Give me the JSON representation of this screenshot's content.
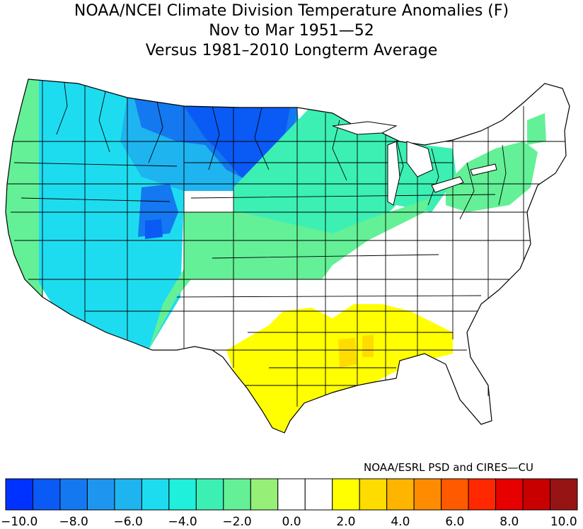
{
  "title": {
    "line1": "NOAA/NCEI Climate Division Temperature Anomalies (F)",
    "line2": "Nov to Mar 1951—52",
    "line3": "Versus 1981–2010 Longterm Average"
  },
  "credit": "NOAA/ESRL PSD and CIRES—CU",
  "colors": {
    "cold_strong": "#0028f0",
    "cold_mid": "#1e9bf5",
    "cold_light": "#1ef0e6",
    "cool_green": "#5aef96",
    "near_zero": "#ffffff",
    "warm_light": "#ffff00",
    "warm_orange": "#ffc800",
    "state_line": "#000000"
  },
  "colorbar": {
    "bins": [
      {
        "color": "#0032ff"
      },
      {
        "color": "#0a5af5"
      },
      {
        "color": "#1478f0"
      },
      {
        "color": "#1e96f0"
      },
      {
        "color": "#1eb4f0"
      },
      {
        "color": "#1edcf0"
      },
      {
        "color": "#1ef0dc"
      },
      {
        "color": "#3cf0b4"
      },
      {
        "color": "#64f096"
      },
      {
        "color": "#96f078"
      },
      {
        "color": "#ffffff"
      },
      {
        "color": "#ffffff"
      },
      {
        "color": "#ffff00"
      },
      {
        "color": "#ffdc00"
      },
      {
        "color": "#ffb400"
      },
      {
        "color": "#ff8c00"
      },
      {
        "color": "#ff5a00"
      },
      {
        "color": "#ff2800"
      },
      {
        "color": "#e60000"
      },
      {
        "color": "#c80000"
      },
      {
        "color": "#961414"
      }
    ],
    "tick_labels": [
      "−10.0",
      "−8.0",
      "−6.0",
      "−4.0",
      "−2.0",
      "0.0",
      "2.0",
      "4.0",
      "6.0",
      "8.0",
      "10.0"
    ],
    "tick_values": [
      -10,
      -8,
      -6,
      -4,
      -2,
      0,
      2,
      4,
      6,
      8,
      10
    ]
  },
  "regions": [
    {
      "name": "northern-plains-core",
      "color": "#0a5af5",
      "anomaly_f": -9
    },
    {
      "name": "utah-wyoming-pocket",
      "color": "#1478f0",
      "anomaly_f": -8
    },
    {
      "name": "northern-rockies",
      "color": "#1eb4f0",
      "anomaly_f": -6
    },
    {
      "name": "great-basin-west",
      "color": "#1edcf0",
      "anomaly_f": -5
    },
    {
      "name": "pacific-coast-northwest",
      "color": "#64f096",
      "anomaly_f": -3
    },
    {
      "name": "central-plains-midwest",
      "color": "#3cf0b4",
      "anomaly_f": -3
    },
    {
      "name": "lower-midwest-southern-plains",
      "color": "#64f096",
      "anomaly_f": -2
    },
    {
      "name": "northeast-greens",
      "color": "#64f096",
      "anomaly_f": -2
    },
    {
      "name": "southeast-ohio-valley",
      "color": "#ffffff",
      "anomaly_f": 0
    },
    {
      "name": "gulf-coast-yellow",
      "color": "#ffff00",
      "anomaly_f": 1.5
    },
    {
      "name": "lower-mississippi-orange",
      "color": "#ffdc00",
      "anomaly_f": 2.5
    }
  ]
}
